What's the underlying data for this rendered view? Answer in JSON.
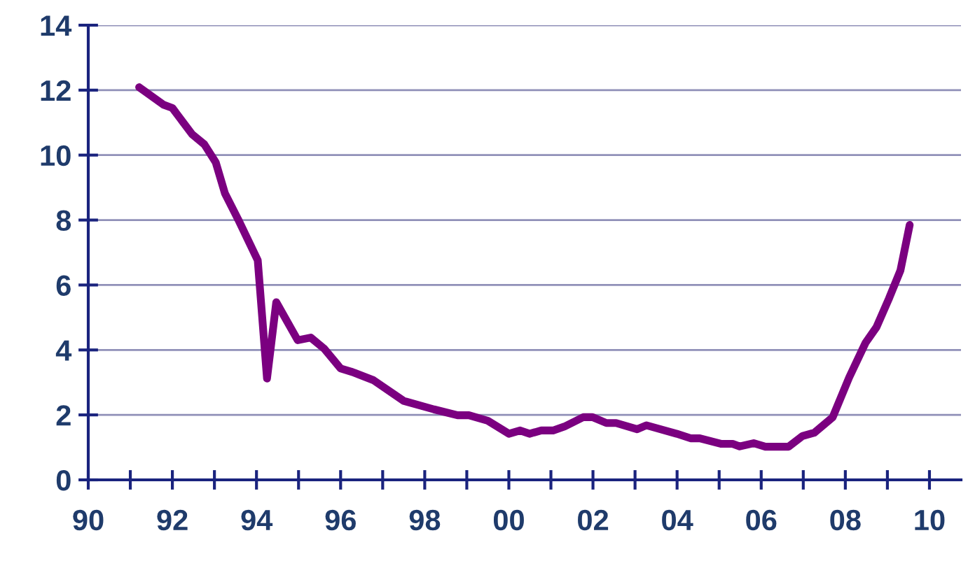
{
  "chart_data": {
    "type": "line",
    "x": [
      1991.21,
      1991.79,
      1992.0,
      1992.47,
      1992.76,
      1993.03,
      1993.25,
      1993.56,
      1994.03,
      1994.25,
      1994.47,
      1994.98,
      1995.29,
      1995.61,
      1996.0,
      1996.28,
      1996.78,
      1997.5,
      1998.22,
      1998.78,
      1999.05,
      1999.5,
      2000.0,
      2000.27,
      2000.49,
      2000.77,
      2001.05,
      2001.32,
      2001.77,
      2001.99,
      2002.32,
      2002.55,
      2003.05,
      2003.27,
      2003.99,
      2004.32,
      2004.54,
      2005.04,
      2005.32,
      2005.49,
      2005.82,
      2006.1,
      2006.65,
      2006.98,
      2007.26,
      2007.7,
      2008.09,
      2008.48,
      2008.74,
      2009.04,
      2009.31,
      2009.53
    ],
    "series": [
      {
        "color": "#7b0080",
        "values": [
          12.09,
          11.55,
          11.45,
          10.64,
          10.33,
          9.78,
          8.82,
          8.03,
          6.76,
          3.12,
          5.47,
          4.3,
          4.38,
          4.04,
          3.43,
          3.32,
          3.07,
          2.43,
          2.17,
          1.99,
          1.99,
          1.82,
          1.42,
          1.52,
          1.42,
          1.52,
          1.52,
          1.64,
          1.93,
          1.93,
          1.75,
          1.75,
          1.56,
          1.68,
          1.42,
          1.28,
          1.28,
          1.11,
          1.11,
          1.03,
          1.13,
          1.02,
          1.02,
          1.35,
          1.45,
          1.93,
          3.15,
          4.22,
          4.7,
          5.59,
          6.45,
          7.85
        ]
      }
    ],
    "xlim": [
      1990,
      2010.75
    ],
    "xticks": [
      {
        "value": 1990,
        "label": "90"
      },
      {
        "value": 1991,
        "label": null
      },
      {
        "value": 1992,
        "label": "92"
      },
      {
        "value": 1993,
        "label": null
      },
      {
        "value": 1994,
        "label": "94"
      },
      {
        "value": 1995,
        "label": null
      },
      {
        "value": 1996,
        "label": "96"
      },
      {
        "value": 1997,
        "label": null
      },
      {
        "value": 1998,
        "label": "98"
      },
      {
        "value": 1999,
        "label": null
      },
      {
        "value": 2000,
        "label": "00"
      },
      {
        "value": 2001,
        "label": null
      },
      {
        "value": 2002,
        "label": "02"
      },
      {
        "value": 2003,
        "label": null
      },
      {
        "value": 2004,
        "label": "04"
      },
      {
        "value": 2005,
        "label": null
      },
      {
        "value": 2006,
        "label": "06"
      },
      {
        "value": 2007,
        "label": null
      },
      {
        "value": 2008,
        "label": "08"
      },
      {
        "value": 2009,
        "label": null
      },
      {
        "value": 2010,
        "label": "10"
      }
    ],
    "ylim": [
      0,
      14
    ],
    "yticks": [
      0,
      2,
      4,
      6,
      8,
      10,
      12,
      14
    ],
    "grid": "y",
    "marker": "none",
    "line_style": "solid"
  }
}
